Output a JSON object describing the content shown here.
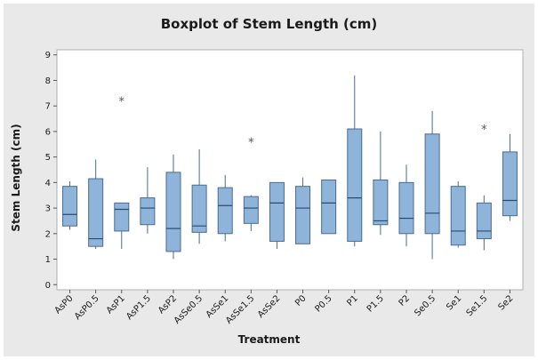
{
  "chart_data": {
    "type": "boxplot",
    "title": "Boxplot of Stem Length (cm)",
    "xlabel": "Treatment",
    "ylabel": "Stem Length (cm)",
    "ylim": [
      -0.2,
      9.2
    ],
    "yticks": [
      0,
      1,
      2,
      3,
      4,
      5,
      6,
      7,
      8,
      9
    ],
    "grid": false,
    "colors": {
      "box_fill": "#8fb4d9",
      "box_stroke": "#4a6b93",
      "whisker": "#4a6b93",
      "median": "#2b4a73",
      "outlier": "#555555",
      "background": "#e9e9e9"
    },
    "categories": [
      "AsP0",
      "AsP0.5",
      "AsP1",
      "AsP1.5",
      "AsP2",
      "AsSe0.5",
      "AsSe1",
      "AsSe1.5",
      "AsSe2",
      "P0",
      "P0.5",
      "P1",
      "P1.5",
      "P2",
      "Se0.5",
      "Se1",
      "Se1.5",
      "Se2"
    ],
    "boxes": [
      {
        "min": 2.15,
        "q1": 2.3,
        "median": 2.75,
        "q3": 3.85,
        "max": 4.05,
        "outliers": []
      },
      {
        "min": 1.4,
        "q1": 1.5,
        "median": 1.8,
        "q3": 4.15,
        "max": 4.9,
        "outliers": []
      },
      {
        "min": 1.4,
        "q1": 2.1,
        "median": 2.95,
        "q3": 3.2,
        "max": 3.2,
        "outliers": [
          7.2
        ]
      },
      {
        "min": 2.0,
        "q1": 2.35,
        "median": 3.0,
        "q3": 3.4,
        "max": 4.6,
        "outliers": []
      },
      {
        "min": 1.0,
        "q1": 1.3,
        "median": 2.2,
        "q3": 4.4,
        "max": 5.1,
        "outliers": []
      },
      {
        "min": 1.6,
        "q1": 2.05,
        "median": 2.3,
        "q3": 3.9,
        "max": 5.3,
        "outliers": []
      },
      {
        "min": 1.7,
        "q1": 2.0,
        "median": 3.1,
        "q3": 3.8,
        "max": 4.3,
        "outliers": []
      },
      {
        "min": 2.1,
        "q1": 2.4,
        "median": 3.0,
        "q3": 3.45,
        "max": 3.5,
        "outliers": [
          5.6
        ]
      },
      {
        "min": 1.4,
        "q1": 1.7,
        "median": 3.2,
        "q3": 4.0,
        "max": 4.0,
        "outliers": []
      },
      {
        "min": 1.6,
        "q1": 1.6,
        "median": 3.0,
        "q3": 3.85,
        "max": 4.2,
        "outliers": []
      },
      {
        "min": 2.0,
        "q1": 2.0,
        "median": 3.2,
        "q3": 4.1,
        "max": 4.1,
        "outliers": []
      },
      {
        "min": 1.5,
        "q1": 1.7,
        "median": 3.4,
        "q3": 6.1,
        "max": 8.2,
        "outliers": []
      },
      {
        "min": 1.95,
        "q1": 2.35,
        "median": 2.5,
        "q3": 4.1,
        "max": 6.0,
        "outliers": []
      },
      {
        "min": 1.5,
        "q1": 2.0,
        "median": 2.6,
        "q3": 4.0,
        "max": 4.7,
        "outliers": []
      },
      {
        "min": 1.0,
        "q1": 2.0,
        "median": 2.8,
        "q3": 5.9,
        "max": 6.8,
        "outliers": []
      },
      {
        "min": 1.45,
        "q1": 1.55,
        "median": 2.1,
        "q3": 3.85,
        "max": 4.05,
        "outliers": []
      },
      {
        "min": 1.35,
        "q1": 1.8,
        "median": 2.1,
        "q3": 3.2,
        "max": 3.5,
        "outliers": [
          6.1
        ]
      },
      {
        "min": 2.5,
        "q1": 2.7,
        "median": 3.3,
        "q3": 5.2,
        "max": 5.9,
        "outliers": []
      }
    ]
  }
}
